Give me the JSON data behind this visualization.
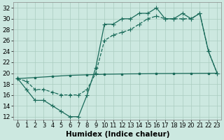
{
  "xlabel": "Humidex (Indice chaleur)",
  "xlim": [
    -0.5,
    23.5
  ],
  "ylim": [
    11.5,
    33
  ],
  "xtick_vals": [
    0,
    1,
    2,
    3,
    4,
    5,
    6,
    7,
    8,
    9,
    10,
    11,
    12,
    13,
    14,
    15,
    16,
    17,
    18,
    19,
    20,
    21,
    22,
    23
  ],
  "ytick_vals": [
    12,
    14,
    16,
    18,
    20,
    22,
    24,
    26,
    28,
    30,
    32
  ],
  "bg_color": "#cce8e0",
  "grid_color": "#aaccbf",
  "line_color": "#1a6b5a",
  "line_jagged_x": [
    0,
    1,
    2,
    3,
    4,
    5,
    6,
    7,
    8,
    9,
    10,
    11,
    12,
    13,
    14,
    15,
    16,
    17,
    18,
    19,
    20,
    21,
    22,
    23
  ],
  "line_jagged_y": [
    19,
    17,
    15,
    15,
    14,
    13,
    12,
    12,
    16,
    21,
    29,
    29,
    30,
    30,
    31,
    31,
    32,
    30,
    30,
    31,
    30,
    31,
    24,
    20
  ],
  "line_mid_x": [
    0,
    1,
    2,
    3,
    4,
    5,
    6,
    7,
    8,
    9,
    10,
    11,
    12,
    13,
    14,
    15,
    16,
    17,
    18,
    19,
    20,
    21,
    22,
    23
  ],
  "line_mid_y": [
    19,
    18.5,
    17,
    17,
    16.5,
    16,
    16,
    16,
    17,
    20,
    26,
    27,
    27.5,
    28,
    29,
    30,
    30.5,
    30,
    30,
    30,
    30,
    31,
    24,
    20
  ],
  "line_flat_x": [
    0,
    1,
    2,
    3,
    4,
    5,
    6,
    7,
    8,
    9,
    10,
    11,
    12,
    13,
    14,
    15,
    16,
    17,
    18,
    19,
    20,
    21,
    22,
    23
  ],
  "line_flat_y": [
    19,
    19.1,
    19.2,
    19.3,
    19.4,
    19.5,
    19.6,
    19.65,
    19.7,
    19.75,
    19.8,
    19.82,
    19.85,
    19.87,
    19.88,
    19.9,
    19.92,
    19.93,
    19.94,
    19.95,
    19.96,
    19.97,
    19.98,
    20
  ],
  "font_size": 6.5,
  "lw": 0.9,
  "ms": 3.0
}
